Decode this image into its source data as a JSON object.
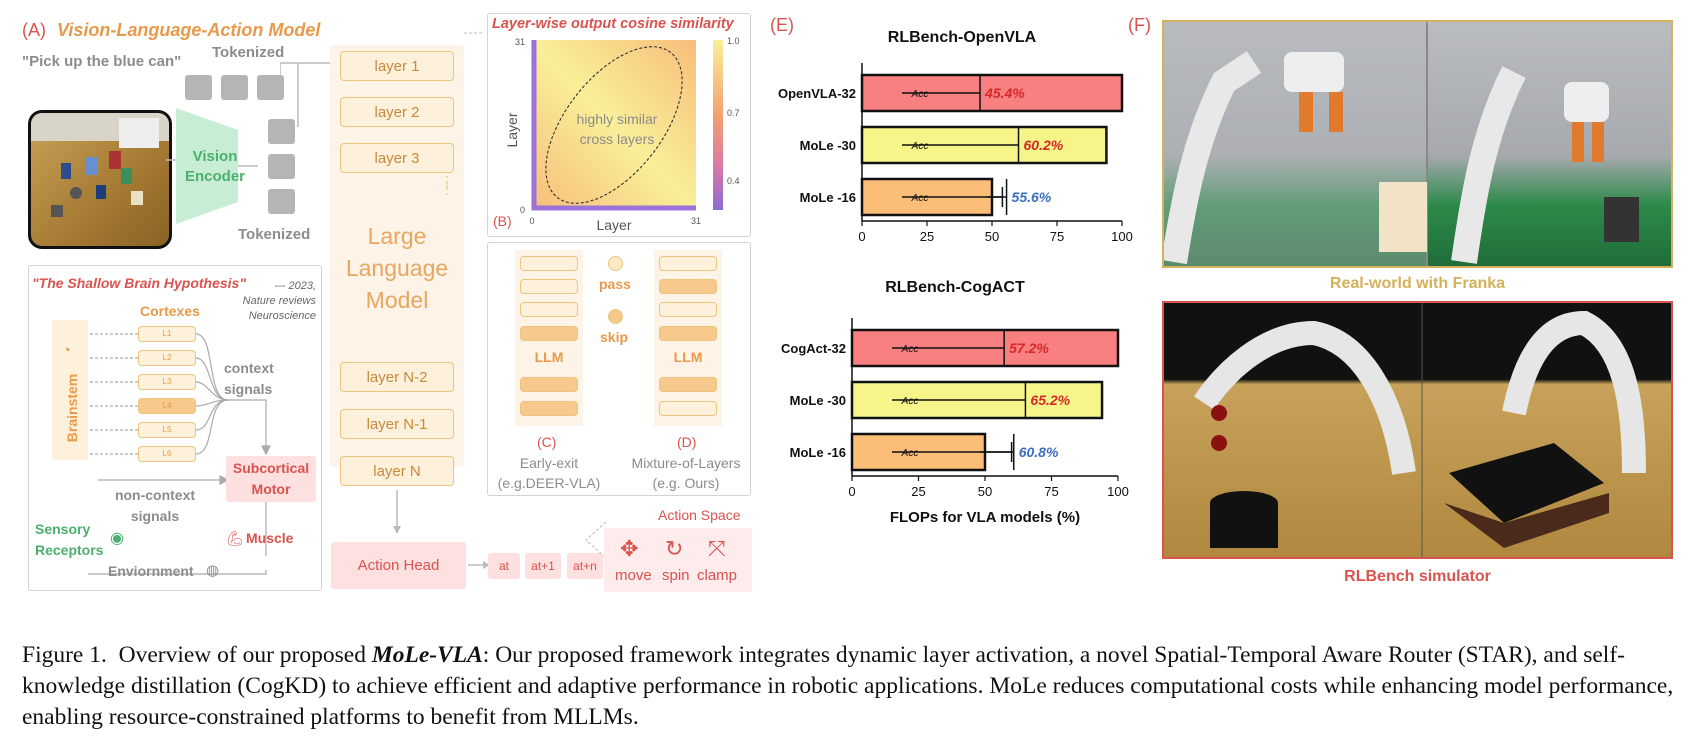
{
  "panelA": {
    "label": "(A)",
    "title": "Vision-Language-Action Model",
    "prompt": "\"Pick up the blue can\"",
    "tokenized_top": "Tokenized",
    "tokenized_bottom": "Tokenized",
    "vision_encoder": [
      "Vision",
      "Encoder"
    ],
    "llm_title": [
      "Large",
      "Language",
      "Model"
    ],
    "layers_top": [
      "layer 1",
      "layer 2",
      "layer 3"
    ],
    "layers_bottom": [
      "layer N-2",
      "layer N-1",
      "layer N"
    ],
    "action_head": "Action Head",
    "action_tokens": [
      "at",
      "at+1",
      "at+n"
    ],
    "action_space_title": "Action Space",
    "actions": [
      "move",
      "spin",
      "clamp"
    ]
  },
  "brain": {
    "title": "\"The Shallow Brain Hypothesis\"",
    "citation": [
      "--- 2023,",
      "Nature reviews",
      "Neuroscience"
    ],
    "cortexes": "Cortexes",
    "cortex_layers": [
      "L1",
      "L2",
      "L3",
      "L4",
      "L5",
      "L6"
    ],
    "brainstem": "Brainstem",
    "context_signals": [
      "context",
      "signals"
    ],
    "subcortical": [
      "Subcortical",
      "Motor"
    ],
    "non_context": [
      "non-context",
      "signals"
    ],
    "muscle": "Muscle",
    "sensory": [
      "Sensory",
      "Receptors"
    ],
    "environment": "Enviornment"
  },
  "panelB": {
    "title": "Layer-wise output cosine similarity",
    "label": "(B)",
    "xlabel": "Layer",
    "ylabel": "Layer",
    "x_ticks": [
      "0",
      "31"
    ],
    "y_ticks": [
      "31",
      "0"
    ],
    "colorbar_ticks": [
      "1.0",
      "0.7",
      "0.4"
    ],
    "annotation": [
      "highly similar",
      "cross layers"
    ]
  },
  "panelCD": {
    "llm": "LLM",
    "pass": "pass",
    "skip": "skip",
    "c_label": "(C)",
    "c_text": [
      "Early-exit",
      "(e.g.DEER-VLA)"
    ],
    "d_label": "(D)",
    "d_text": [
      "Mixture-of-Layers",
      "(e.g. Ours)"
    ]
  },
  "panelE": {
    "label": "(E)",
    "bar_inner_label": "Acc",
    "xlabel": "FLOPs for VLA models (%)",
    "colors": {
      "red": "#f88080",
      "yellow": "#f6f58a",
      "orange": "#fbbd78",
      "acc_red": "#d62828",
      "acc_blue": "#3b6ec2"
    }
  },
  "chart_data": [
    {
      "type": "bar",
      "orientation": "horizontal",
      "title": "RLBench-OpenVLA",
      "categories": [
        "OpenVLA-32",
        "MoLe -30",
        "MoLe -16"
      ],
      "values": [
        100,
        94,
        50
      ],
      "accuracy_labels": [
        "45.4%",
        "60.2%",
        "55.6%"
      ],
      "accuracy_values": [
        45.4,
        60.2,
        55.6
      ],
      "xlim": [
        0,
        100
      ],
      "x_ticks": [
        "0",
        "25",
        "50",
        "75",
        "100"
      ],
      "error_bar": {
        "category": "MoLe -16",
        "low": 48,
        "high": 54
      }
    },
    {
      "type": "bar",
      "orientation": "horizontal",
      "title": "RLBench-CogACT",
      "categories": [
        "CogAct-32",
        "MoLe -30",
        "MoLe -16"
      ],
      "values": [
        100,
        94,
        50
      ],
      "accuracy_labels": [
        "57.2%",
        "65.2%",
        "60.8%"
      ],
      "accuracy_values": [
        57.2,
        65.2,
        60.8
      ],
      "xlim": [
        0,
        100
      ],
      "x_ticks": [
        "0",
        "25",
        "50",
        "75",
        "100"
      ],
      "xlabel": "FLOPs for VLA models (%)",
      "error_bar": {
        "category": "MoLe -16",
        "low": 48,
        "high": 60
      }
    }
  ],
  "panelF": {
    "label": "(F)",
    "top_caption": "Real-world with Franka",
    "bottom_caption": "RLBench simulator"
  },
  "caption": {
    "fig": "Figure 1.",
    "pre": "Overview of our proposed",
    "name": "MoLe-VLA",
    "post": ": Our proposed framework integrates dynamic layer activation, a novel Spatial-Temporal Aware Router (STAR), and self-knowledge distillation (CogKD) to achieve efficient and adaptive performance in robotic applications. MoLe reduces computational costs while enhancing model performance, enabling resource-constrained platforms to benefit from MLLMs."
  }
}
